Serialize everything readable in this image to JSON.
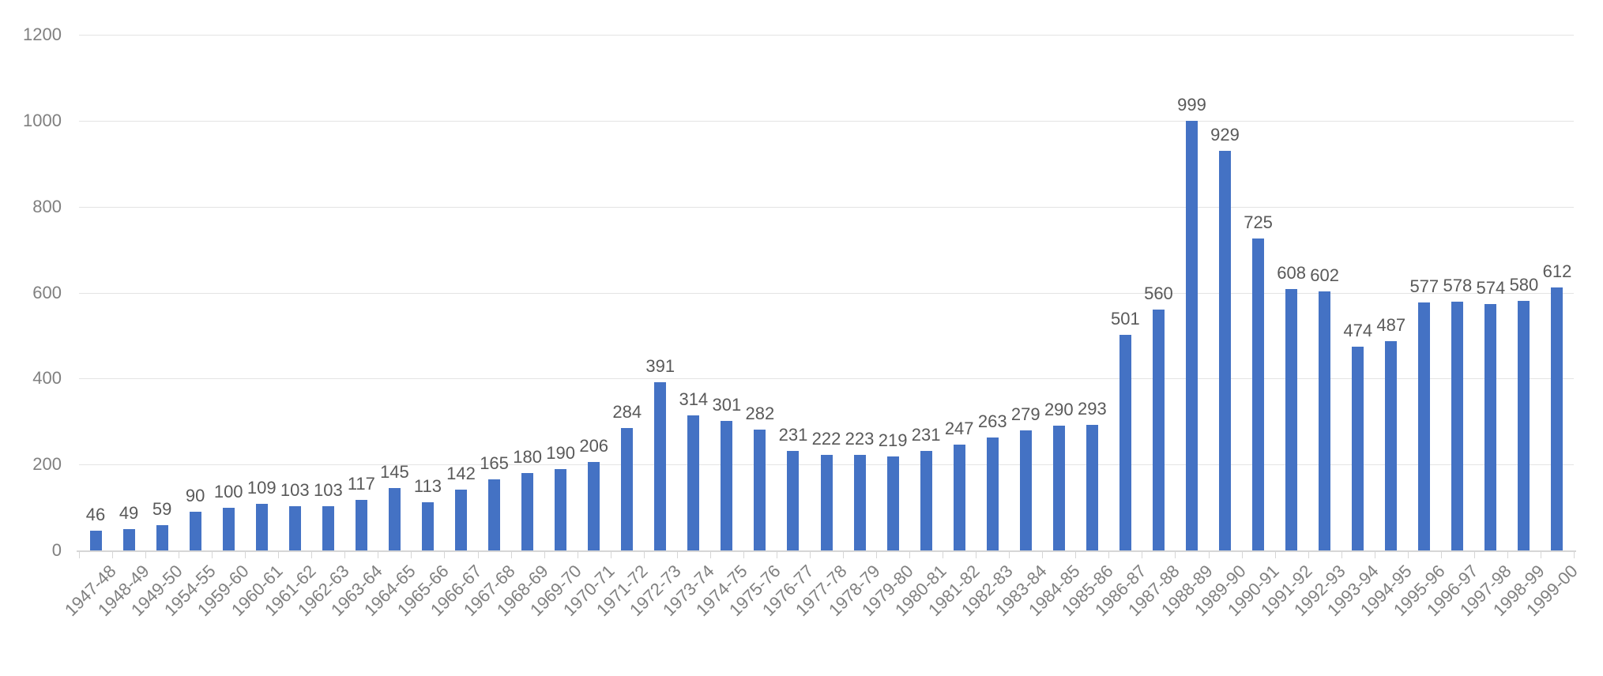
{
  "chart_data": {
    "type": "bar",
    "title": "",
    "xlabel": "",
    "ylabel": "",
    "categories": [
      "1947-48",
      "1948-49",
      "1949-50",
      "1954-55",
      "1959-60",
      "1960-61",
      "1961-62",
      "1962-63",
      "1963-64",
      "1964-65",
      "1965-66",
      "1966-67",
      "1967-68",
      "1968-69",
      "1969-70",
      "1970-71",
      "1971-72",
      "1972-73",
      "1973-74",
      "1974-75",
      "1975-76",
      "1976-77",
      "1977-78",
      "1978-79",
      "1979-80",
      "1980-81",
      "1981-82",
      "1982-83",
      "1983-84",
      "1984-85",
      "1985-86",
      "1986-87",
      "1987-88",
      "1988-89",
      "1989-90",
      "1990-91",
      "1991-92",
      "1992-93",
      "1993-94",
      "1994-95",
      "1995-96",
      "1996-97",
      "1997-98",
      "1998-99",
      "1999-00"
    ],
    "values": [
      46,
      49,
      59,
      90,
      100,
      109,
      103,
      103,
      117,
      145,
      113,
      142,
      165,
      180,
      190,
      206,
      284,
      391,
      314,
      301,
      282,
      231,
      222,
      223,
      219,
      231,
      247,
      263,
      279,
      290,
      293,
      501,
      560,
      999,
      929,
      725,
      608,
      602,
      474,
      487,
      577,
      578,
      574,
      580,
      612
    ],
    "ylim": [
      0,
      1200
    ],
    "yticks": [
      0,
      200,
      400,
      600,
      800,
      1000,
      1200
    ],
    "grid": true,
    "legend": false,
    "data_labels": true,
    "colors": {
      "bar": "#4472C4",
      "data_label": "#595959",
      "axis_label": "#808080",
      "gridline": "#E4E4E4",
      "axis_line": "#D6D6D6",
      "background": "#FFFFFF"
    }
  }
}
